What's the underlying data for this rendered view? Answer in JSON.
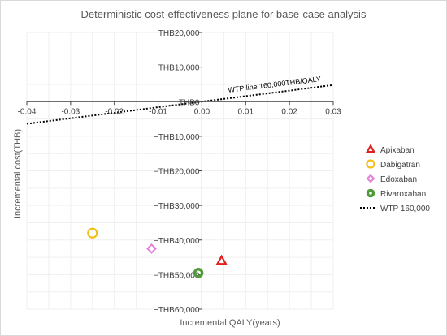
{
  "chart_data": {
    "type": "scatter",
    "title": "Deterministic cost-effectiveness plane for base-case analysis",
    "xlabel": "Incremental QALY(years)",
    "ylabel": "Incremental cost(THB)",
    "xlim": [
      -0.04,
      0.03
    ],
    "ylim": [
      -60000,
      20000
    ],
    "x_ticks": [
      "-0.04",
      "-0.03",
      "-0.02",
      "-0.01",
      "0.00",
      "0.01",
      "0.02",
      "0.03"
    ],
    "y_ticks": [
      "THB20,000",
      "THB10,000",
      "THB0",
      "−THB10,000",
      "−THB20,000",
      "−THB30,000",
      "−THB40,000",
      "−THB50,000",
      "−THB60,000"
    ],
    "grid": true,
    "legend_position": "right",
    "series": [
      {
        "name": "Apixaban",
        "marker": "triangle",
        "color": "#e0211f",
        "x": 0.0045,
        "y": -46000
      },
      {
        "name": "Dabigatran",
        "marker": "circle",
        "color": "#f2c014",
        "x": -0.025,
        "y": -38000
      },
      {
        "name": "Edoxaban",
        "marker": "diamond",
        "color": "#e37fd9",
        "x": -0.0115,
        "y": -42500
      },
      {
        "name": "Rivaroxaban",
        "marker": "circle-thick",
        "color": "#4f9a3a",
        "x": -0.0008,
        "y": -49500
      }
    ],
    "wtp_line": {
      "name": "WTP 160,000",
      "slope": 160000,
      "x": [
        -0.04,
        0.03
      ],
      "style": "dotted",
      "color": "#000000"
    },
    "annotation": "WTP line 160,000THB/QALY"
  }
}
